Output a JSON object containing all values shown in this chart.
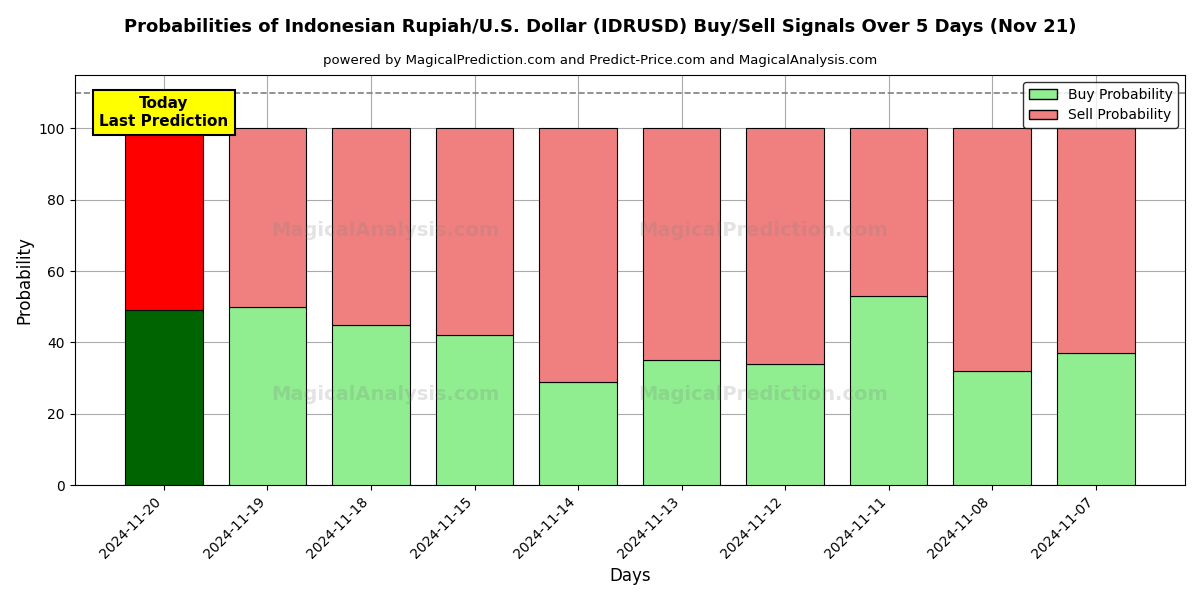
{
  "title": "Probabilities of Indonesian Rupiah/U.S. Dollar (IDRUSD) Buy/Sell Signals Over 5 Days (Nov 21)",
  "subtitle": "powered by MagicalPrediction.com and Predict-Price.com and MagicalAnalysis.com",
  "xlabel": "Days",
  "ylabel": "Probability",
  "dates": [
    "2024-11-20",
    "2024-11-19",
    "2024-11-18",
    "2024-11-15",
    "2024-11-14",
    "2024-11-13",
    "2024-11-12",
    "2024-11-11",
    "2024-11-08",
    "2024-11-07"
  ],
  "buy_values": [
    49,
    50,
    45,
    42,
    29,
    35,
    34,
    53,
    32,
    37
  ],
  "sell_values": [
    51,
    50,
    55,
    58,
    71,
    65,
    66,
    47,
    68,
    63
  ],
  "today_buy_color": "#006400",
  "today_sell_color": "#FF0000",
  "buy_color": "#90EE90",
  "sell_color": "#F08080",
  "today_label_bg": "#FFFF00",
  "today_annotation": "Today\nLast Prediction",
  "dashed_line_y": 110,
  "ylim": [
    0,
    115
  ],
  "yticks": [
    0,
    20,
    40,
    60,
    80,
    100
  ],
  "legend_buy": "Buy Probability",
  "legend_sell": "Sell Probability",
  "watermark_line1": "MagicalAnalysis.com",
  "watermark_line2": "MagicalPrediction.com",
  "background_color": "#ffffff",
  "grid_color": "#aaaaaa"
}
